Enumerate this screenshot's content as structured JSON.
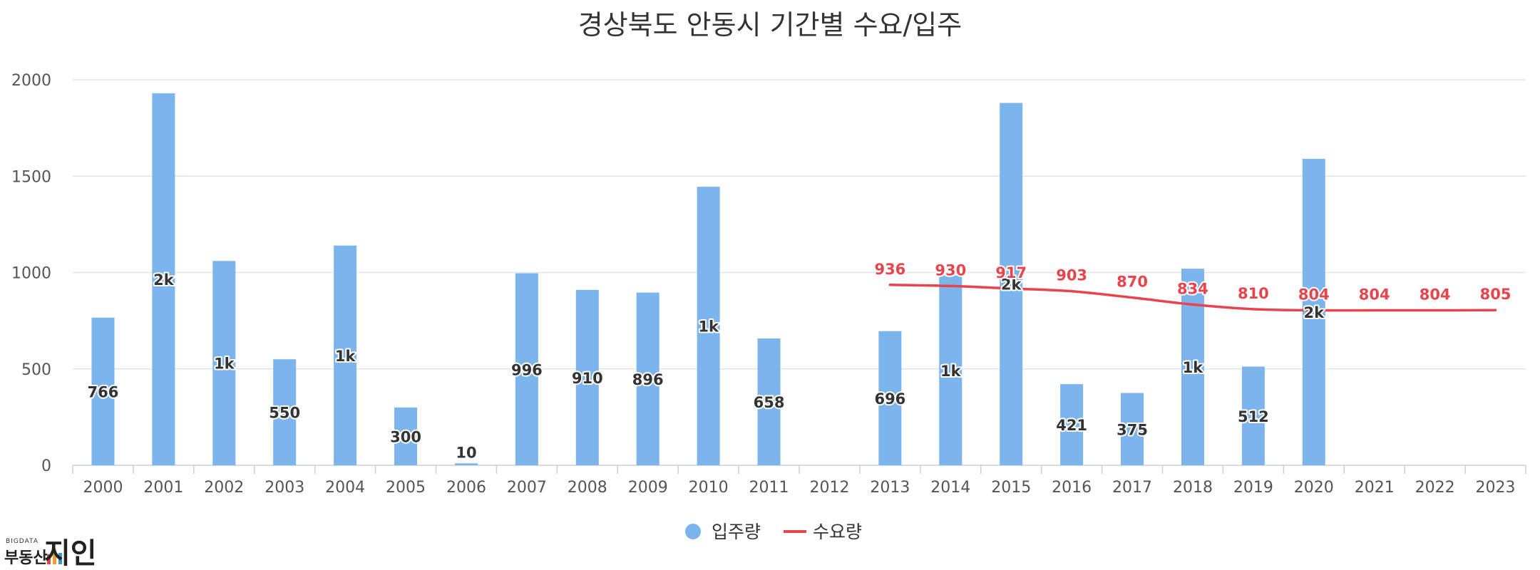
{
  "title": "경상북도 안동시 기간별 수요/입주",
  "colors": {
    "bar": "#7cb4ec",
    "line": "#e8444c",
    "grid": "#e1e4ea",
    "axis": "#c8d0dc"
  },
  "chart_data": {
    "type": "bar",
    "title": "경상북도 안동시 기간별 수요/입주",
    "categories": [
      "2000",
      "2001",
      "2002",
      "2003",
      "2004",
      "2005",
      "2006",
      "2007",
      "2008",
      "2009",
      "2010",
      "2011",
      "2012",
      "2013",
      "2014",
      "2015",
      "2016",
      "2017",
      "2018",
      "2019",
      "2020",
      "2021",
      "2022",
      "2023"
    ],
    "ylim": [
      0,
      2000
    ],
    "yticks": [
      0,
      500,
      1000,
      1500,
      2000
    ],
    "grid": true,
    "legend_position": "bottom-center",
    "series": [
      {
        "name": "입주량",
        "type": "bar",
        "values": [
          766,
          1930,
          1060,
          550,
          1140,
          300,
          10,
          996,
          910,
          896,
          1445,
          658,
          0,
          696,
          985,
          1880,
          421,
          375,
          1020,
          512,
          1590,
          0,
          0,
          0
        ],
        "labels": [
          "766",
          "2k",
          "1k",
          "550",
          "1k",
          "300",
          "10",
          "996",
          "910",
          "896",
          "1k",
          "658",
          "",
          "696",
          "1k",
          "2k",
          "421",
          "375",
          "1k",
          "512",
          "2k",
          "",
          "",
          ""
        ]
      },
      {
        "name": "수요량",
        "type": "line",
        "values": [
          null,
          null,
          null,
          null,
          null,
          null,
          null,
          null,
          null,
          null,
          null,
          null,
          null,
          936,
          930,
          917,
          903,
          870,
          834,
          810,
          804,
          804,
          804,
          805
        ],
        "labels": [
          "",
          "",
          "",
          "",
          "",
          "",
          "",
          "",
          "",
          "",
          "",
          "",
          "",
          "936",
          "930",
          "917",
          "903",
          "870",
          "834",
          "810",
          "804",
          "804",
          "804",
          "805"
        ]
      }
    ]
  },
  "legend": [
    {
      "label": "입주량",
      "icon": "circle-marker"
    },
    {
      "label": "수요량",
      "icon": "line-marker"
    }
  ],
  "logo": {
    "small": "BIGDATA",
    "main": "부동산",
    "brand": "지인"
  }
}
